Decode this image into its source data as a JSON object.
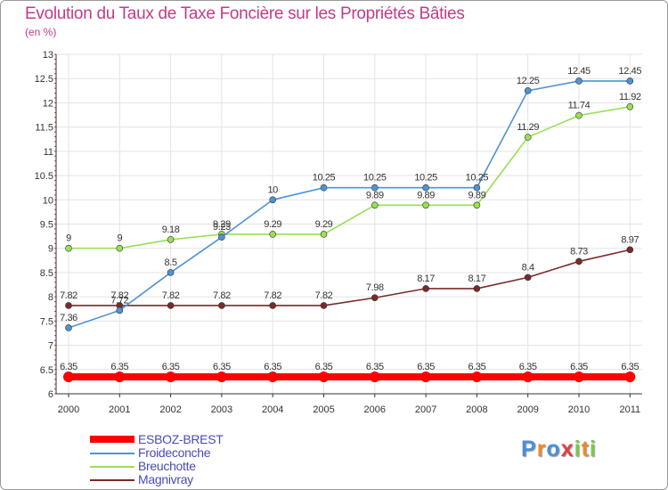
{
  "chart_data": {
    "type": "line",
    "title": "Evolution du Taux de Taxe Foncière sur les Propriétés Bâties",
    "ylabel": "(en %)",
    "xlabel": "",
    "categories": [
      "2000",
      "2001",
      "2002",
      "2003",
      "2004",
      "2005",
      "2006",
      "2007",
      "2008",
      "2009",
      "2010",
      "2011"
    ],
    "ylim": [
      6,
      13
    ],
    "yticks": [
      "6",
      "6.5",
      "7",
      "7.5",
      "8",
      "8.5",
      "9",
      "9.5",
      "10",
      "10.5",
      "11",
      "11.5",
      "12",
      "12.5",
      "13"
    ],
    "grid": true,
    "legend_position": "bottom-left",
    "series": [
      {
        "name": "ESBOZ-BREST",
        "color": "#ff0000",
        "values": [
          6.35,
          6.35,
          6.35,
          6.35,
          6.35,
          6.35,
          6.35,
          6.35,
          6.35,
          6.35,
          6.35,
          6.35
        ],
        "labels": [
          "6.35",
          "6.35",
          "6.35",
          "6.35",
          "6.35",
          "6.35",
          "6.35",
          "6.35",
          "6.35",
          "6.35",
          "6.35",
          "6.35"
        ]
      },
      {
        "name": "Froideconche",
        "color": "#4f94d4",
        "values": [
          7.36,
          7.72,
          8.5,
          9.23,
          10,
          10.25,
          10.25,
          10.25,
          10.25,
          12.25,
          12.45,
          12.45
        ],
        "labels": [
          "7.36",
          "7.72",
          "8.5",
          "9.23",
          "10",
          "10.25",
          "10.25",
          "10.25",
          "10.25",
          "12.25",
          "12.45",
          "12.45"
        ]
      },
      {
        "name": "Breuchotte",
        "color": "#99e055",
        "values": [
          9,
          9,
          9.18,
          9.29,
          9.29,
          9.29,
          9.89,
          9.89,
          9.89,
          11.29,
          11.74,
          11.92
        ],
        "labels": [
          "9",
          "9",
          "9.18",
          "9.29",
          "9.29",
          "9.29",
          "9.89",
          "9.89",
          "9.89",
          "11.29",
          "11.74",
          "11.92"
        ]
      },
      {
        "name": "Magnivray",
        "color": "#7a2a2a",
        "values": [
          7.82,
          7.82,
          7.82,
          7.82,
          7.82,
          7.82,
          7.98,
          8.17,
          8.17,
          8.4,
          8.73,
          8.97
        ],
        "labels": [
          "7.82",
          "7.82",
          "7.82",
          "7.82",
          "7.82",
          "7.82",
          "7.98",
          "8.17",
          "8.17",
          "8.4",
          "8.73",
          "8.97"
        ]
      }
    ]
  },
  "logo": {
    "letters": [
      "P",
      "r",
      "o",
      "x",
      "i",
      "t",
      "i"
    ],
    "colors": [
      "#4a8fd8",
      "#e98a2e",
      "#4a8fd8",
      "#e04040",
      "#7cc84a",
      "#e98a2e",
      "#7cc84a"
    ]
  }
}
